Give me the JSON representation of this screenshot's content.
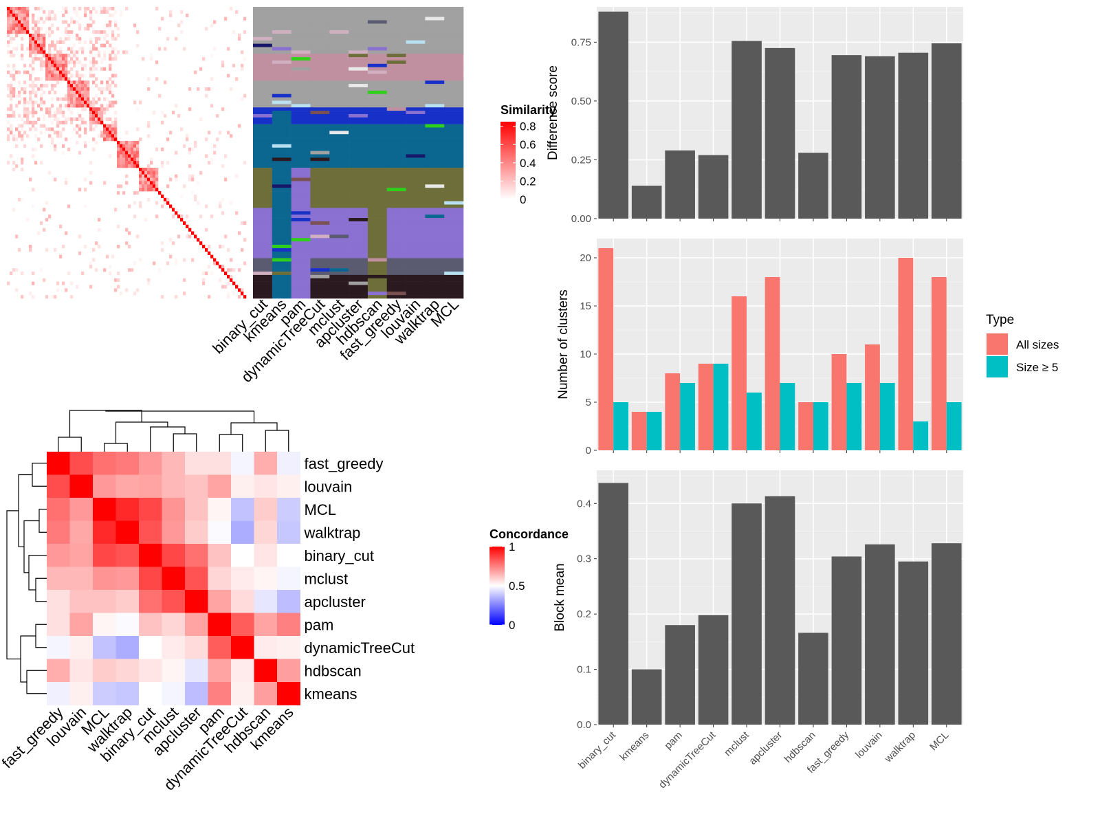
{
  "methods": [
    "binary_cut",
    "kmeans",
    "pam",
    "dynamicTreeCut",
    "mclust",
    "apcluster",
    "hdbscan",
    "fast_greedy",
    "louvain",
    "walktrap",
    "MCL"
  ],
  "similarity_legend": {
    "title": "Similarity",
    "ticks": [
      "0.8",
      "0.6",
      "0.4",
      "0.2",
      "0"
    ],
    "tick_values": [
      0.8,
      0.6,
      0.4,
      0.2,
      0
    ],
    "colors": [
      "#ffffff",
      "#ff0000"
    ]
  },
  "concordance_legend": {
    "title": "Concordance",
    "ticks": [
      "1",
      "0.5",
      "0"
    ],
    "tick_values": [
      1,
      0.5,
      0
    ],
    "colors": [
      "#0000ff",
      "#ffffff",
      "#ff0000"
    ]
  },
  "concordance_heatmap": {
    "order": [
      "fast_greedy",
      "louvain",
      "MCL",
      "walktrap",
      "binary_cut",
      "mclust",
      "apcluster",
      "pam",
      "dynamicTreeCut",
      "hdbscan",
      "kmeans"
    ],
    "matrix": [
      [
        1.0,
        0.85,
        0.78,
        0.76,
        0.7,
        0.64,
        0.56,
        0.56,
        0.48,
        0.66,
        0.47
      ],
      [
        0.85,
        1.0,
        0.7,
        0.67,
        0.68,
        0.64,
        0.62,
        0.68,
        0.53,
        0.55,
        0.53
      ],
      [
        0.78,
        0.7,
        1.0,
        0.92,
        0.86,
        0.71,
        0.62,
        0.52,
        0.38,
        0.6,
        0.4
      ],
      [
        0.76,
        0.67,
        0.92,
        1.0,
        0.84,
        0.7,
        0.6,
        0.49,
        0.34,
        0.58,
        0.39
      ],
      [
        0.7,
        0.68,
        0.86,
        0.84,
        1.0,
        0.86,
        0.78,
        0.62,
        0.5,
        0.55,
        0.5
      ],
      [
        0.64,
        0.64,
        0.71,
        0.7,
        0.86,
        1.0,
        0.84,
        0.58,
        0.54,
        0.52,
        0.48
      ],
      [
        0.56,
        0.62,
        0.62,
        0.6,
        0.78,
        0.84,
        1.0,
        0.68,
        0.57,
        0.45,
        0.37
      ],
      [
        0.56,
        0.68,
        0.52,
        0.49,
        0.62,
        0.58,
        0.68,
        1.0,
        0.82,
        0.68,
        0.75
      ],
      [
        0.48,
        0.53,
        0.38,
        0.34,
        0.5,
        0.54,
        0.57,
        0.82,
        1.0,
        0.54,
        0.53
      ],
      [
        0.66,
        0.55,
        0.6,
        0.58,
        0.55,
        0.52,
        0.45,
        0.68,
        0.54,
        1.0,
        0.69
      ],
      [
        0.47,
        0.53,
        0.4,
        0.39,
        0.5,
        0.48,
        0.37,
        0.75,
        0.53,
        0.69,
        1.0
      ]
    ]
  },
  "chart_data": [
    {
      "type": "bar",
      "categories": [
        "binary_cut",
        "kmeans",
        "pam",
        "dynamicTreeCut",
        "mclust",
        "apcluster",
        "hdbscan",
        "fast_greedy",
        "louvain",
        "walktrap",
        "MCL"
      ],
      "values": [
        0.88,
        0.14,
        0.29,
        0.27,
        0.755,
        0.725,
        0.28,
        0.695,
        0.69,
        0.705,
        0.745
      ],
      "ylabel": "Difference score",
      "ylim": [
        0,
        0.9
      ],
      "yticks": [
        "0.00",
        "0.25",
        "0.50",
        "0.75"
      ],
      "ytick_values": [
        0,
        0.25,
        0.5,
        0.75
      ],
      "bar_color": "#595959",
      "panel_color": "#ebebeb"
    },
    {
      "type": "bar",
      "categories": [
        "binary_cut",
        "kmeans",
        "pam",
        "dynamicTreeCut",
        "mclust",
        "apcluster",
        "hdbscan",
        "fast_greedy",
        "louvain",
        "walktrap",
        "MCL"
      ],
      "series": [
        {
          "name": "All sizes",
          "values": [
            21,
            4,
            8,
            9,
            16,
            18,
            5,
            10,
            11,
            20,
            18
          ],
          "color": "#f8766d"
        },
        {
          "name": "Size ≥ 5",
          "values": [
            5,
            4,
            7,
            9,
            6,
            7,
            5,
            7,
            7,
            3,
            5
          ],
          "color": "#00bfc4"
        }
      ],
      "ylabel": "Number of clusters",
      "ylim": [
        0,
        22
      ],
      "yticks": [
        "0",
        "5",
        "10",
        "15",
        "20"
      ],
      "ytick_values": [
        0,
        5,
        10,
        15,
        20
      ],
      "legend": {
        "title": "Type",
        "placement": "right"
      },
      "panel_color": "#ebebeb"
    },
    {
      "type": "bar",
      "categories": [
        "binary_cut",
        "kmeans",
        "pam",
        "dynamicTreeCut",
        "mclust",
        "apcluster",
        "hdbscan",
        "fast_greedy",
        "louvain",
        "walktrap",
        "MCL"
      ],
      "values": [
        0.437,
        0.1,
        0.18,
        0.198,
        0.4,
        0.413,
        0.166,
        0.304,
        0.326,
        0.295,
        0.328
      ],
      "ylabel": "Block mean",
      "ylim": [
        0,
        0.46
      ],
      "yticks": [
        "0.0",
        "0.1",
        "0.2",
        "0.3",
        "0.4"
      ],
      "ytick_values": [
        0,
        0.1,
        0.2,
        0.3,
        0.4
      ],
      "bar_color": "#595959",
      "panel_color": "#ebebeb"
    }
  ]
}
